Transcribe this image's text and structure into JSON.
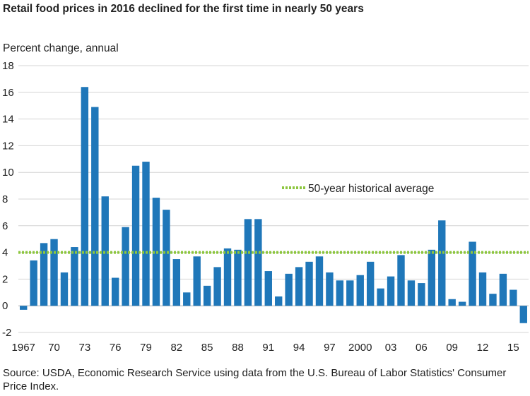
{
  "title": "Retail food prices in 2016 declined for the first time in nearly 50 years",
  "source": "Source: USDA, Economic Research Service using data from the U.S. Bureau of Labor Statistics' Consumer Price Index.",
  "colors": {
    "bar": "#1f77b9",
    "average_line": "#8dc63f"
  },
  "chart_data": {
    "type": "bar",
    "ylabel": "Percent change, annual",
    "xlabel": "",
    "ylim": [
      -2,
      18
    ],
    "yticks": [
      -2,
      0,
      2,
      4,
      6,
      8,
      10,
      12,
      14,
      16,
      18
    ],
    "grid": "horizontal",
    "categories": [
      1967,
      1968,
      1969,
      1970,
      1971,
      1972,
      1973,
      1974,
      1975,
      1976,
      1977,
      1978,
      1979,
      1980,
      1981,
      1982,
      1983,
      1984,
      1985,
      1986,
      1987,
      1988,
      1989,
      1990,
      1991,
      1992,
      1993,
      1994,
      1995,
      1996,
      1997,
      1998,
      1999,
      2000,
      2001,
      2002,
      2003,
      2004,
      2005,
      2006,
      2007,
      2008,
      2009,
      2010,
      2011,
      2012,
      2013,
      2014,
      2015,
      2016
    ],
    "xtick_labels": [
      {
        "year": 1967,
        "label": "1967"
      },
      {
        "year": 1970,
        "label": "70"
      },
      {
        "year": 1973,
        "label": "73"
      },
      {
        "year": 1976,
        "label": "76"
      },
      {
        "year": 1979,
        "label": "79"
      },
      {
        "year": 1982,
        "label": "82"
      },
      {
        "year": 1985,
        "label": "85"
      },
      {
        "year": 1988,
        "label": "88"
      },
      {
        "year": 1991,
        "label": "91"
      },
      {
        "year": 1994,
        "label": "94"
      },
      {
        "year": 1997,
        "label": "97"
      },
      {
        "year": 2000,
        "label": "2000"
      },
      {
        "year": 2003,
        "label": "03"
      },
      {
        "year": 2006,
        "label": "06"
      },
      {
        "year": 2009,
        "label": "09"
      },
      {
        "year": 2012,
        "label": "12"
      },
      {
        "year": 2015,
        "label": "15"
      }
    ],
    "values": [
      -0.3,
      3.4,
      4.7,
      5.0,
      2.5,
      4.4,
      16.4,
      14.9,
      8.2,
      2.1,
      5.9,
      10.5,
      10.8,
      8.1,
      7.2,
      3.5,
      1.0,
      3.7,
      1.5,
      2.9,
      4.3,
      4.2,
      6.5,
      6.5,
      2.6,
      0.7,
      2.4,
      2.9,
      3.3,
      3.7,
      2.5,
      1.9,
      1.9,
      2.3,
      3.3,
      1.3,
      2.2,
      3.8,
      1.9,
      1.7,
      4.2,
      6.4,
      0.5,
      0.3,
      4.8,
      2.5,
      0.9,
      2.4,
      1.2,
      -1.3
    ],
    "reference_line": {
      "name": "50-year historical average",
      "value": 4.0
    },
    "legend_position": "inside-right"
  }
}
